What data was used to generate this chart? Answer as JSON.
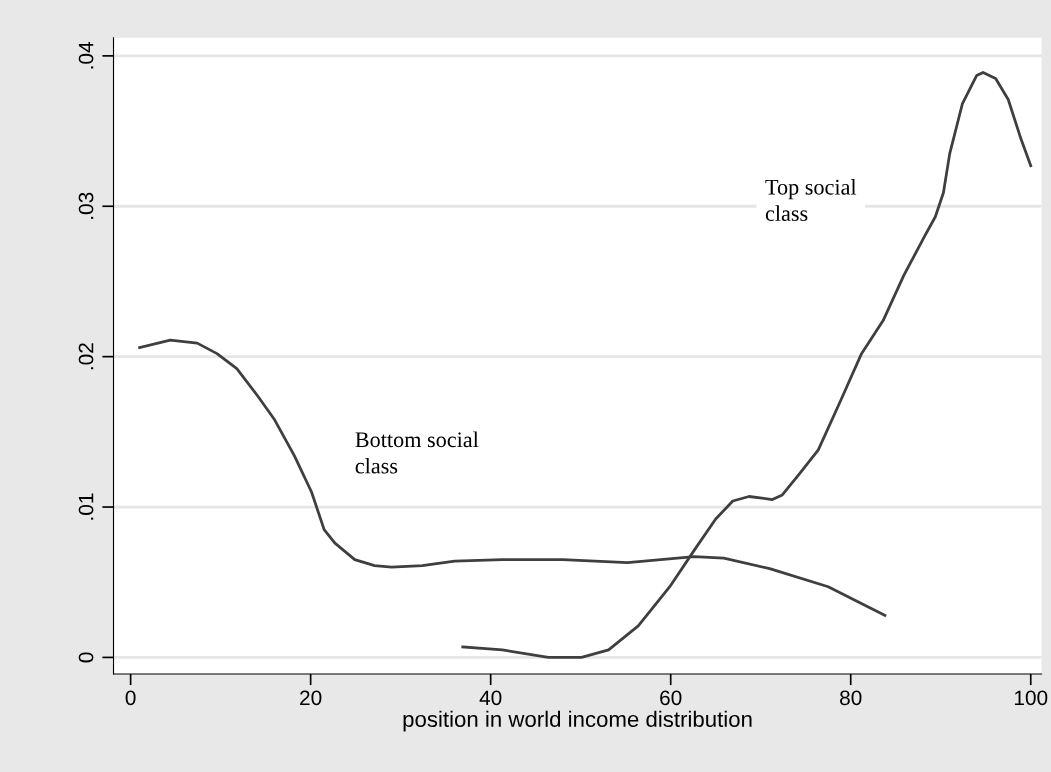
{
  "chart_data": {
    "type": "line",
    "xlabel": "position in world income distribution",
    "xlim": [
      -1.9,
      101.2
    ],
    "xticks": [
      0,
      20,
      40,
      60,
      80,
      100
    ],
    "ylim": [
      -0.0011,
      0.0412
    ],
    "yticks": [
      {
        "value": 0,
        "label": "0"
      },
      {
        "value": 0.01,
        "label": ".01"
      },
      {
        "value": 0.02,
        "label": ".02"
      },
      {
        "value": 0.03,
        "label": ".03"
      },
      {
        "value": 0.04,
        "label": ".04"
      }
    ],
    "grid": "y",
    "line_style": "solid",
    "marker": "none",
    "series": [
      {
        "color": "#3f3f3f",
        "x": [
          1.0,
          4.4,
          7.4,
          9.6,
          11.8,
          14.1,
          16.0,
          18.2,
          20.1,
          21.5,
          22.7,
          24.9,
          27.1,
          29.0,
          32.4,
          36.0,
          41.3,
          46.4,
          48.0,
          55.2,
          62.6,
          65.9,
          71.0,
          77.5,
          83.8
        ],
        "values": [
          0.0206,
          0.0211,
          0.0209,
          0.0202,
          0.0192,
          0.0174,
          0.0158,
          0.0134,
          0.011,
          0.0085,
          0.0076,
          0.0065,
          0.0061,
          0.006,
          0.0061,
          0.0064,
          0.0065,
          0.0065,
          0.0065,
          0.0063,
          0.0067,
          0.0066,
          0.0059,
          0.0047,
          0.0028
        ]
      },
      {
        "color": "#3f3f3f",
        "x": [
          36.9,
          41.3,
          46.4,
          50.1,
          53.1,
          56.4,
          59.9,
          62.7,
          65.0,
          66.9,
          68.7,
          71.3,
          72.4,
          74.3,
          76.4,
          78.9,
          81.2,
          83.6,
          85.9,
          88.2,
          89.4,
          90.3,
          91.0,
          92.4,
          94.0,
          94.7,
          96.1,
          97.5,
          98.9,
          100.0
        ],
        "values": [
          0.0007,
          0.0005,
          0.0,
          0.0,
          0.0005,
          0.0021,
          0.0047,
          0.0072,
          0.0092,
          0.0104,
          0.0107,
          0.0105,
          0.0108,
          0.0122,
          0.0138,
          0.0171,
          0.0202,
          0.0224,
          0.0254,
          0.028,
          0.0293,
          0.0309,
          0.0335,
          0.0368,
          0.0387,
          0.0389,
          0.0385,
          0.0371,
          0.0345,
          0.0327
        ]
      }
    ],
    "annotations": [
      "Bottom social\nclass",
      "Top social\nclass"
    ]
  }
}
